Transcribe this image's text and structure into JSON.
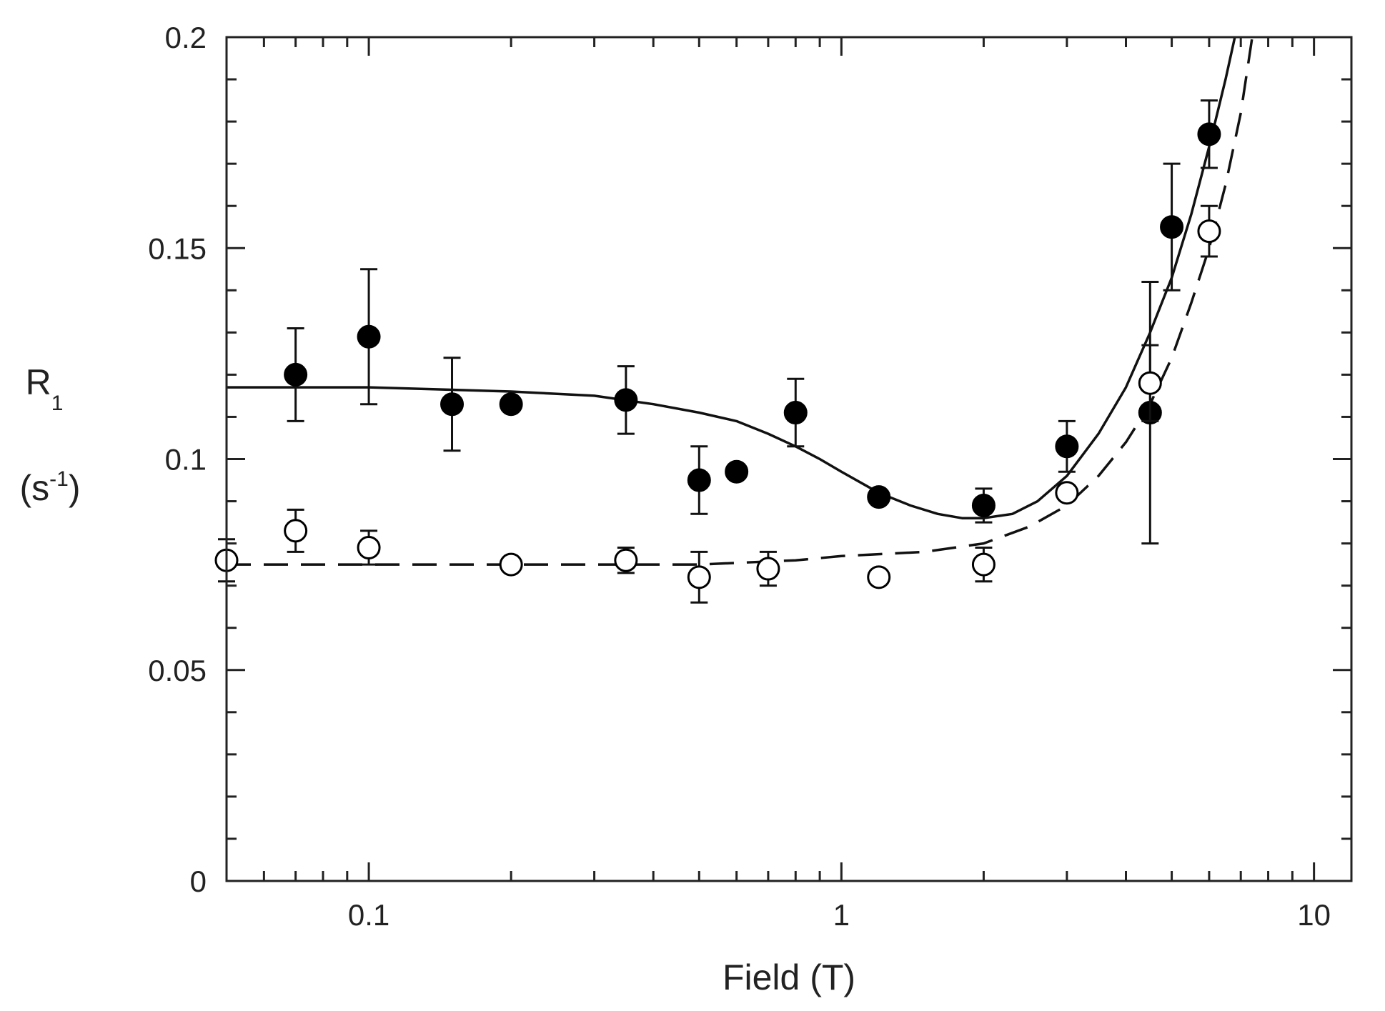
{
  "chart_data": {
    "type": "scatter",
    "title": "",
    "xlabel": "Field (T)",
    "ylabel": {
      "main": "R",
      "sub": "1",
      "unit_open": "(s",
      "unit_sup": "-1",
      "unit_close": ")"
    },
    "xscale": "log",
    "xlim": [
      0.05,
      12
    ],
    "ylim": [
      0,
      0.2
    ],
    "grid": false,
    "legend": "none",
    "x_ticks": [
      {
        "value": 0.1,
        "label": "0.1"
      },
      {
        "value": 1,
        "label": "1"
      },
      {
        "value": 10,
        "label": "10"
      }
    ],
    "y_ticks": [
      {
        "value": 0,
        "label": "0"
      },
      {
        "value": 0.05,
        "label": "0.05"
      },
      {
        "value": 0.1,
        "label": "0.1"
      },
      {
        "value": 0.15,
        "label": "0.15"
      },
      {
        "value": 0.2,
        "label": "0.2"
      }
    ],
    "series": [
      {
        "marker": "filled-circle",
        "color": "#000000",
        "points": [
          {
            "x": 0.07,
            "y": 0.12,
            "err": 0.011
          },
          {
            "x": 0.1,
            "y": 0.129,
            "err": 0.016
          },
          {
            "x": 0.15,
            "y": 0.113,
            "err": 0.011
          },
          {
            "x": 0.2,
            "y": 0.113,
            "err": 0
          },
          {
            "x": 0.35,
            "y": 0.114,
            "err": 0.008
          },
          {
            "x": 0.5,
            "y": 0.095,
            "err": 0.008
          },
          {
            "x": 0.6,
            "y": 0.097,
            "err": 0
          },
          {
            "x": 0.8,
            "y": 0.111,
            "err": 0.008
          },
          {
            "x": 1.2,
            "y": 0.091,
            "err": 0
          },
          {
            "x": 2.0,
            "y": 0.089,
            "err": 0.004
          },
          {
            "x": 3.0,
            "y": 0.103,
            "err": 0.006
          },
          {
            "x": 4.5,
            "y": 0.111,
            "err": 0.031
          },
          {
            "x": 5.0,
            "y": 0.155,
            "err": 0.015
          },
          {
            "x": 6.0,
            "y": 0.177,
            "err": 0.008
          }
        ]
      },
      {
        "marker": "open-circle",
        "color": "#000000",
        "points": [
          {
            "x": 0.05,
            "y": 0.076,
            "err": 0.005
          },
          {
            "x": 0.07,
            "y": 0.083,
            "err": 0.005
          },
          {
            "x": 0.1,
            "y": 0.079,
            "err": 0.004
          },
          {
            "x": 0.2,
            "y": 0.075,
            "err": 0
          },
          {
            "x": 0.35,
            "y": 0.076,
            "err": 0.003
          },
          {
            "x": 0.5,
            "y": 0.072,
            "err": 0.006
          },
          {
            "x": 0.7,
            "y": 0.074,
            "err": 0.004
          },
          {
            "x": 1.2,
            "y": 0.072,
            "err": 0
          },
          {
            "x": 2.0,
            "y": 0.075,
            "err": 0.004
          },
          {
            "x": 3.0,
            "y": 0.092,
            "err": 0
          },
          {
            "x": 4.5,
            "y": 0.118,
            "err": 0.009
          },
          {
            "x": 6.0,
            "y": 0.154,
            "err": 0.006
          }
        ]
      }
    ],
    "fits": [
      {
        "style": "solid",
        "points": [
          [
            0.05,
            0.117
          ],
          [
            0.1,
            0.117
          ],
          [
            0.2,
            0.116
          ],
          [
            0.3,
            0.115
          ],
          [
            0.4,
            0.113
          ],
          [
            0.5,
            0.111
          ],
          [
            0.6,
            0.109
          ],
          [
            0.7,
            0.106
          ],
          [
            0.8,
            0.103
          ],
          [
            0.9,
            0.1
          ],
          [
            1.0,
            0.097
          ],
          [
            1.2,
            0.092
          ],
          [
            1.4,
            0.089
          ],
          [
            1.6,
            0.087
          ],
          [
            1.8,
            0.086
          ],
          [
            2.0,
            0.086
          ],
          [
            2.3,
            0.087
          ],
          [
            2.6,
            0.09
          ],
          [
            3.0,
            0.096
          ],
          [
            3.5,
            0.106
          ],
          [
            4.0,
            0.117
          ],
          [
            4.5,
            0.13
          ],
          [
            5.0,
            0.143
          ],
          [
            5.5,
            0.158
          ],
          [
            6.0,
            0.174
          ],
          [
            6.5,
            0.19
          ],
          [
            6.8,
            0.2
          ]
        ]
      },
      {
        "style": "dashed",
        "points": [
          [
            0.05,
            0.075
          ],
          [
            0.5,
            0.075
          ],
          [
            0.8,
            0.076
          ],
          [
            1.0,
            0.077
          ],
          [
            1.5,
            0.078
          ],
          [
            2.0,
            0.08
          ],
          [
            2.5,
            0.084
          ],
          [
            3.0,
            0.089
          ],
          [
            3.5,
            0.096
          ],
          [
            4.0,
            0.104
          ],
          [
            4.5,
            0.113
          ],
          [
            5.0,
            0.124
          ],
          [
            5.5,
            0.137
          ],
          [
            6.0,
            0.15
          ],
          [
            6.5,
            0.165
          ],
          [
            7.0,
            0.182
          ],
          [
            7.4,
            0.2
          ]
        ]
      }
    ]
  }
}
